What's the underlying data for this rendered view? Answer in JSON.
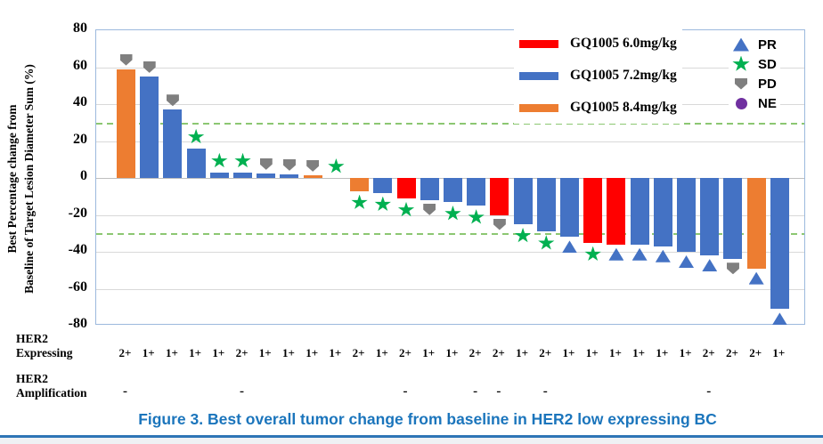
{
  "title": "Figure 3. Best overall tumor change from baseline in HER2 low expressing BC",
  "y_axis": {
    "title_line1": "Best Percentage change from",
    "title_line2": "Baseline of Target Lesion Diameter Sum (%)",
    "ticks": [
      80,
      60,
      40,
      20,
      0,
      -20,
      -40,
      -60,
      -80
    ]
  },
  "rows": {
    "her2_expressing_label_line1": "HER2",
    "her2_expressing_label_line2": "Expressing",
    "her2_amplification_label_line1": "HER2",
    "her2_amplification_label_line2": "Amplification"
  },
  "legend_doses": [
    {
      "label": "GQ1005 6.0mg/kg",
      "color": "#FF0000"
    },
    {
      "label": "GQ1005 7.2mg/kg",
      "color": "#4472C4"
    },
    {
      "label": "GQ1005 8.4mg/kg",
      "color": "#ED7D31"
    }
  ],
  "legend_markers": [
    {
      "label": "PR",
      "shape": "triangle",
      "color": "#4472C4"
    },
    {
      "label": "SD",
      "shape": "star",
      "color": "#00B050"
    },
    {
      "label": "PD",
      "shape": "pentagon",
      "color": "#7F7F7F"
    },
    {
      "label": "NE",
      "shape": "circle",
      "color": "#7030A0"
    }
  ],
  "colors": {
    "dose_6_0": "#FF0000",
    "dose_7_2": "#4472C4",
    "dose_8_4": "#ED7D31",
    "marker_PR": "#4472C4",
    "marker_SD": "#00B050",
    "marker_PD": "#7F7F7F",
    "marker_NE": "#7030A0",
    "reference_line": "#8CC772",
    "plot_border": "#9CB9DD",
    "gridline": "#D9D9D9",
    "title_blue": "#1B75BC"
  },
  "chart_data": {
    "type": "bar",
    "title": "Best overall tumor change from baseline in HER2 low expressing BC",
    "ylabel": "Best Percentage change from Baseline of Target Lesion Diameter Sum (%)",
    "ylim": [
      -80,
      80
    ],
    "grid": true,
    "reference_lines": [
      30,
      -30
    ],
    "legend_position": "top-right-inside",
    "series_key": "dose (mg/kg)",
    "bars": [
      {
        "value": 59,
        "dose": "8.4",
        "response": "PD",
        "her2": "2+",
        "amplification": "-"
      },
      {
        "value": 55,
        "dose": "7.2",
        "response": "PD",
        "her2": "1+",
        "amplification": ""
      },
      {
        "value": 37,
        "dose": "7.2",
        "response": "PD",
        "her2": "1+",
        "amplification": ""
      },
      {
        "value": 16,
        "dose": "7.2",
        "response": "SD",
        "her2": "1+",
        "amplification": ""
      },
      {
        "value": 3,
        "dose": "7.2",
        "response": "SD",
        "her2": "1+",
        "amplification": ""
      },
      {
        "value": 3,
        "dose": "7.2",
        "response": "SD",
        "her2": "2+",
        "amplification": "-"
      },
      {
        "value": 2.5,
        "dose": "7.2",
        "response": "PD",
        "her2": "1+",
        "amplification": ""
      },
      {
        "value": 2,
        "dose": "7.2",
        "response": "PD",
        "her2": "1+",
        "amplification": ""
      },
      {
        "value": 1.5,
        "dose": "8.4",
        "response": "PD",
        "her2": "1+",
        "amplification": ""
      },
      {
        "value": 0,
        "dose": "7.2",
        "response": "SD",
        "her2": "1+",
        "amplification": ""
      },
      {
        "value": -7,
        "dose": "8.4",
        "response": "SD",
        "her2": "2+",
        "amplification": ""
      },
      {
        "value": -8,
        "dose": "7.2",
        "response": "SD",
        "her2": "1+",
        "amplification": ""
      },
      {
        "value": -11,
        "dose": "6.0",
        "response": "SD",
        "her2": "2+",
        "amplification": "-"
      },
      {
        "value": -12,
        "dose": "7.2",
        "response": "PD",
        "her2": "1+",
        "amplification": ""
      },
      {
        "value": -13,
        "dose": "7.2",
        "response": "SD",
        "her2": "1+",
        "amplification": ""
      },
      {
        "value": -15,
        "dose": "7.2",
        "response": "SD",
        "her2": "2+",
        "amplification": "-"
      },
      {
        "value": -20,
        "dose": "6.0",
        "response": "PD",
        "her2": "2+",
        "amplification": "-"
      },
      {
        "value": -25,
        "dose": "7.2",
        "response": "SD",
        "her2": "1+",
        "amplification": ""
      },
      {
        "value": -29,
        "dose": "7.2",
        "response": "SD",
        "her2": "2+",
        "amplification": "-"
      },
      {
        "value": -32,
        "dose": "7.2",
        "response": "PR",
        "her2": "1+",
        "amplification": ""
      },
      {
        "value": -35,
        "dose": "6.0",
        "response": "SD",
        "her2": "1+",
        "amplification": ""
      },
      {
        "value": -36,
        "dose": "6.0",
        "response": "PR",
        "her2": "1+",
        "amplification": ""
      },
      {
        "value": -36,
        "dose": "7.2",
        "response": "PR",
        "her2": "1+",
        "amplification": ""
      },
      {
        "value": -37,
        "dose": "7.2",
        "response": "PR",
        "her2": "1+",
        "amplification": ""
      },
      {
        "value": -40,
        "dose": "7.2",
        "response": "PR",
        "her2": "1+",
        "amplification": ""
      },
      {
        "value": -42,
        "dose": "7.2",
        "response": "PR",
        "her2": "2+",
        "amplification": "-"
      },
      {
        "value": -44,
        "dose": "7.2",
        "response": "PD",
        "her2": "2+",
        "amplification": ""
      },
      {
        "value": -49,
        "dose": "8.4",
        "response": "PR",
        "her2": "2+",
        "amplification": ""
      },
      {
        "value": -71,
        "dose": "7.2",
        "response": "PR",
        "her2": "1+",
        "amplification": ""
      }
    ]
  }
}
